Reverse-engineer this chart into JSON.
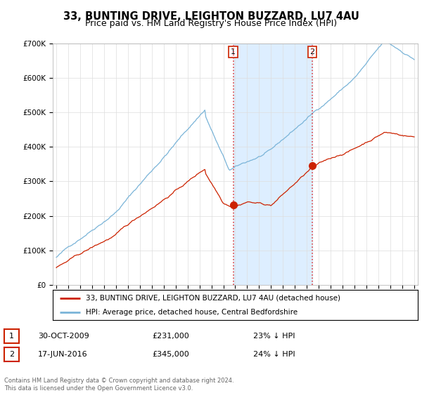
{
  "title": "33, BUNTING DRIVE, LEIGHTON BUZZARD, LU7 4AU",
  "subtitle": "Price paid vs. HM Land Registry's House Price Index (HPI)",
  "legend_line1": "33, BUNTING DRIVE, LEIGHTON BUZZARD, LU7 4AU (detached house)",
  "legend_line2": "HPI: Average price, detached house, Central Bedfordshire",
  "transaction1_date": "30-OCT-2009",
  "transaction1_price": "£231,000",
  "transaction1_hpi": "23% ↓ HPI",
  "transaction2_date": "17-JUN-2016",
  "transaction2_price": "£345,000",
  "transaction2_hpi": "24% ↓ HPI",
  "footer": "Contains HM Land Registry data © Crown copyright and database right 2024.\nThis data is licensed under the Open Government Licence v3.0.",
  "ylim": [
    0,
    700000
  ],
  "yticks": [
    0,
    100000,
    200000,
    300000,
    400000,
    500000,
    600000,
    700000
  ],
  "ytick_labels": [
    "£0",
    "£100K",
    "£200K",
    "£300K",
    "£400K",
    "£500K",
    "£600K",
    "£700K"
  ],
  "transaction1_year": 2009.83,
  "transaction2_year": 2016.46,
  "transaction1_price_val": 231000,
  "transaction2_price_val": 345000,
  "hpi_color": "#7ab4d8",
  "price_color": "#cc2200",
  "shaded_color": "#ddeeff",
  "dashed_line_color": "#dd4444",
  "background_color": "#ffffff",
  "title_fontsize": 10.5,
  "subtitle_fontsize": 9,
  "xlim_left": 1994.7,
  "xlim_right": 2025.3
}
